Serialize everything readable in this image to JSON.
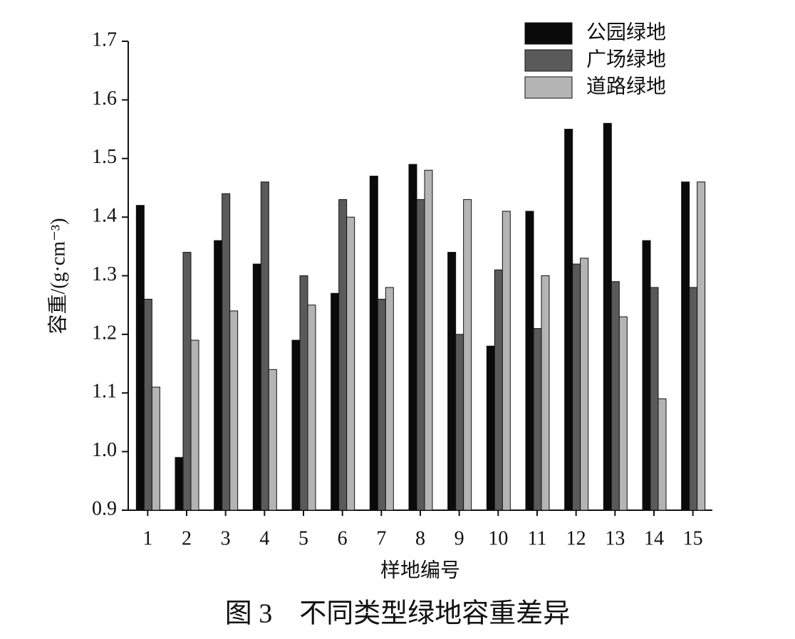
{
  "chart_data": {
    "type": "bar",
    "ylabel": "容重/(g·cm⁻³)",
    "xlabel": "样地编号",
    "caption": "图 3　不同类型绿地容重差异",
    "categories": [
      "1",
      "2",
      "3",
      "4",
      "5",
      "6",
      "7",
      "8",
      "9",
      "10",
      "11",
      "12",
      "13",
      "14",
      "15"
    ],
    "series": [
      {
        "name": "公园绿地",
        "color": "#0a0a0a",
        "values": [
          1.42,
          0.99,
          1.36,
          1.32,
          1.19,
          1.27,
          1.47,
          1.49,
          1.34,
          1.18,
          1.41,
          1.55,
          1.56,
          1.36,
          1.46
        ]
      },
      {
        "name": "广场绿地",
        "color": "#5a5a5a",
        "values": [
          1.26,
          1.34,
          1.44,
          1.46,
          1.3,
          1.43,
          1.26,
          1.43,
          1.2,
          1.31,
          1.21,
          1.32,
          1.29,
          1.28,
          1.28
        ]
      },
      {
        "name": "道路绿地",
        "color": "#b4b4b4",
        "values": [
          1.11,
          1.19,
          1.24,
          1.14,
          1.25,
          1.4,
          1.28,
          1.48,
          1.43,
          1.41,
          1.3,
          1.33,
          1.23,
          1.09,
          1.46
        ]
      }
    ],
    "ylim": [
      0.9,
      1.7
    ],
    "yticks": [
      0.9,
      {
        "value": 1,
        "label": "1.0"
      },
      1.1,
      1.2,
      1.3,
      1.4,
      1.5,
      1.6,
      1.7
    ],
    "legend": "upper right",
    "grid": false
  }
}
